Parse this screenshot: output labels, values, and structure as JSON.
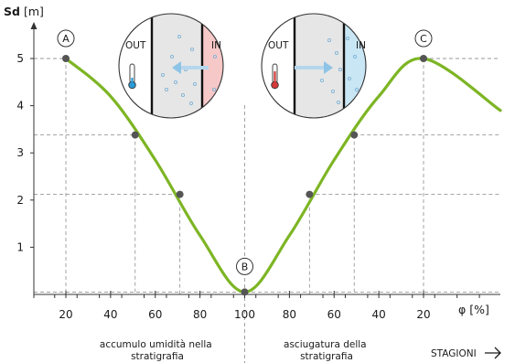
{
  "chart_data": {
    "type": "line",
    "ylabel": "Sd",
    "yunit": "[m]",
    "xlabel": "φ",
    "xunit": "[%]",
    "yticks": [
      1,
      2,
      3,
      4,
      5
    ],
    "xtick_labels": [
      "20",
      "40",
      "60",
      "80",
      "100",
      "80",
      "60",
      "40",
      "20"
    ],
    "ylim": [
      0,
      5.3
    ],
    "curve_color": "#7db524",
    "series": [
      {
        "values_by_tick": [
          5.0,
          4.2,
          2.85,
          1.25,
          0.05,
          1.25,
          2.85,
          4.2,
          5.0
        ],
        "tail_value": 3.9
      }
    ],
    "markers": [
      {
        "x_tick": 0,
        "y": 5.0,
        "label": "A"
      },
      {
        "x_tick": 1.55,
        "y": 3.38,
        "label": ""
      },
      {
        "x_tick": 2.55,
        "y": 2.12,
        "label": ""
      },
      {
        "x_tick": 4,
        "y": 0.05,
        "label": "B"
      },
      {
        "x_tick": 5.45,
        "y": 2.12,
        "label": ""
      },
      {
        "x_tick": 6.45,
        "y": 3.38,
        "label": ""
      },
      {
        "x_tick": 8,
        "y": 5.0,
        "label": "C"
      }
    ],
    "grid": false
  },
  "annotations": {
    "left_note": [
      "accumulo umidità nella",
      "stratigrafia"
    ],
    "right_note": [
      "asciugatura della",
      "stratigrafia"
    ],
    "seasons": "STAGIONI"
  },
  "insets": [
    {
      "out_label": "OUT",
      "in_label": "IN",
      "arrow": "left",
      "thermometer": "cold",
      "in_color": "#f7c8c8"
    },
    {
      "out_label": "OUT",
      "in_label": "IN",
      "arrow": "right",
      "thermometer": "hot",
      "in_color": "#c9e6f4"
    }
  ]
}
